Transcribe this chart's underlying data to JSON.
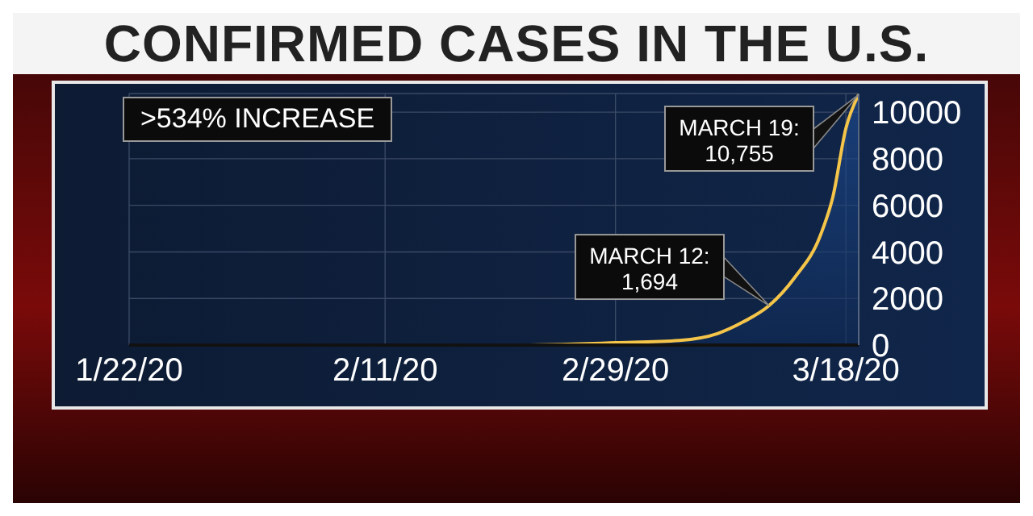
{
  "chart_data": {
    "type": "area",
    "title": "CONFIRMED CASES IN THE U.S.",
    "x": [
      "2020-01-22",
      "2020-02-01",
      "2020-02-11",
      "2020-02-21",
      "2020-02-29",
      "2020-03-05",
      "2020-03-08",
      "2020-03-10",
      "2020-03-12",
      "2020-03-14",
      "2020-03-16",
      "2020-03-17",
      "2020-03-18",
      "2020-03-19"
    ],
    "series": [
      {
        "color": "#f5c54a",
        "values": [
          0,
          0,
          0,
          0,
          100,
          200,
          500,
          1000,
          1694,
          2900,
          4700,
          6400,
          9300,
          10755
        ]
      }
    ],
    "xlim": [
      "2020-01-22",
      "2020-03-19"
    ],
    "xticks": [
      {
        "value": "2020-01-22",
        "label": "1/22/20"
      },
      {
        "value": "2020-02-11",
        "label": "2/11/20"
      },
      {
        "value": "2020-02-29",
        "label": "2/29/20"
      },
      {
        "value": "2020-03-18",
        "label": "3/18/20"
      }
    ],
    "ylim": [
      0,
      10800
    ],
    "yticks": [
      0,
      2000,
      4000,
      6000,
      8000,
      10000
    ],
    "grid": true,
    "annotations": [
      ">534% INCREASE",
      {
        "text": "MARCH 12:\n1,694",
        "x": "2020-03-12",
        "y": 1694
      },
      {
        "text": "MARCH 19:\n10,755",
        "x": "2020-03-19",
        "y": 10755
      }
    ]
  }
}
